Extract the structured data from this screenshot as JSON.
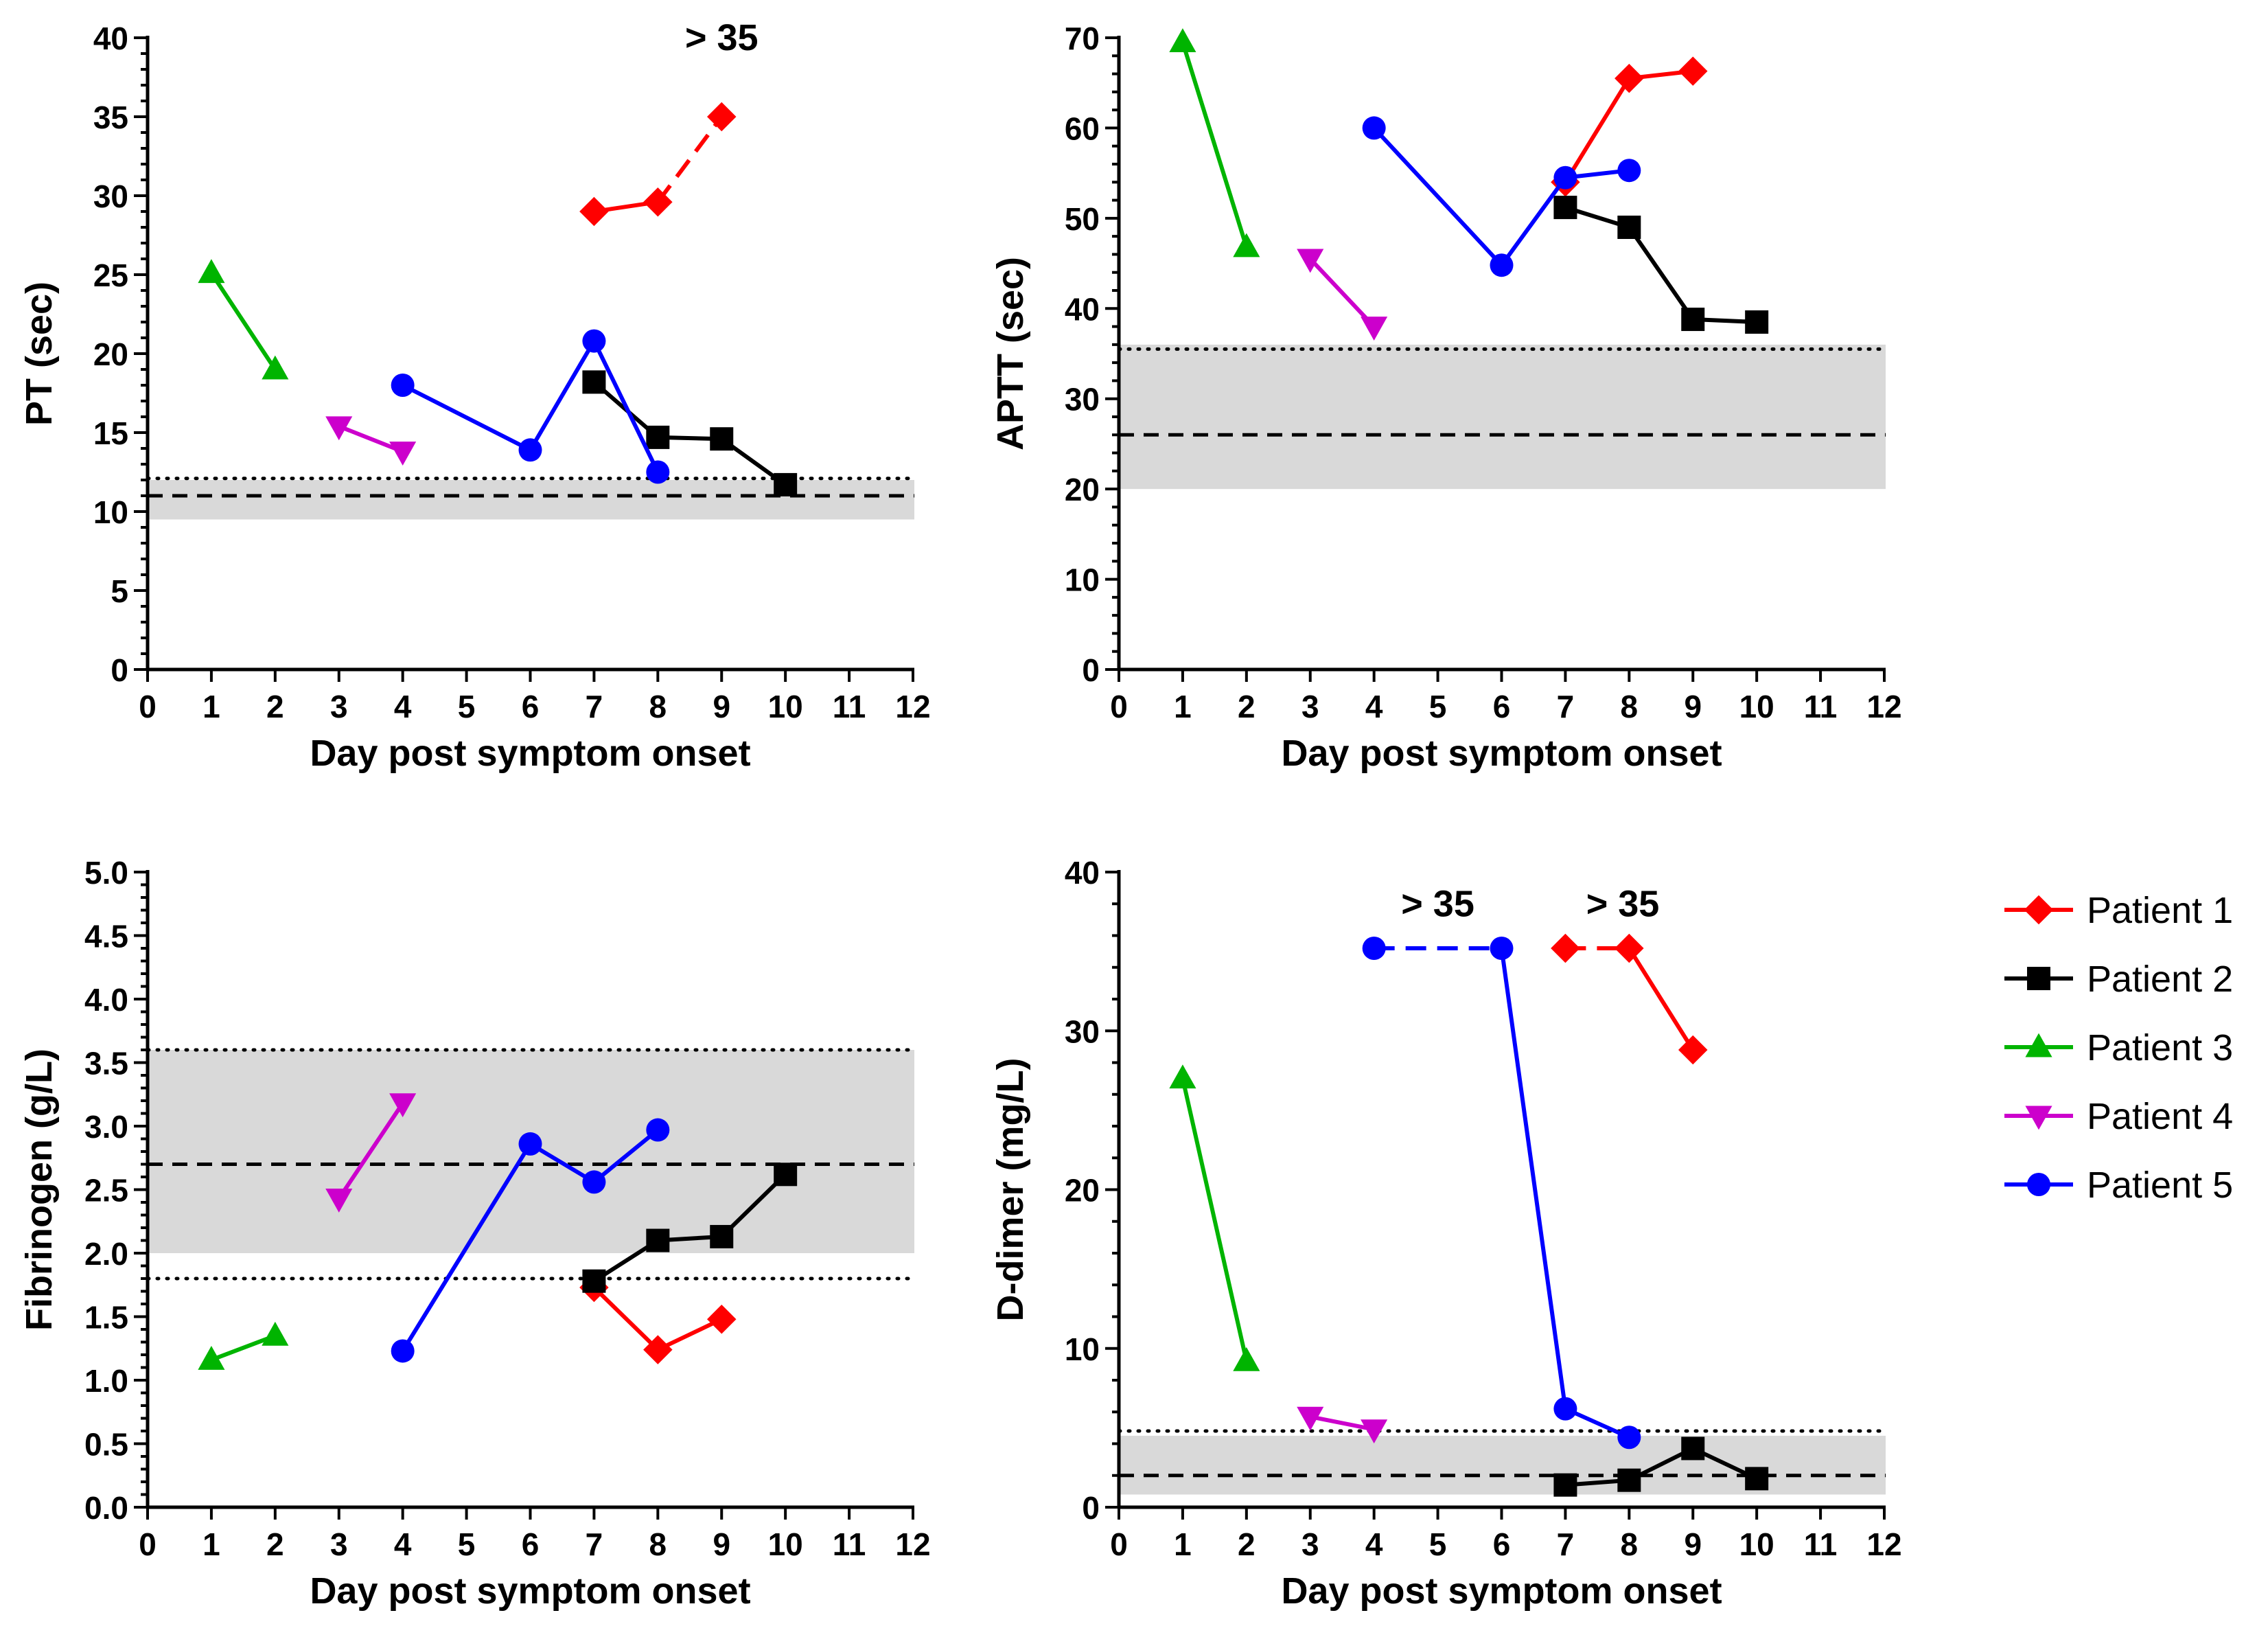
{
  "legend": {
    "items": [
      {
        "label": "Patient 1",
        "color": "#ff0000",
        "marker": "diamond"
      },
      {
        "label": "Patient 2",
        "color": "#000000",
        "marker": "square"
      },
      {
        "label": "Patient 3",
        "color": "#00b400",
        "marker": "triangle-up"
      },
      {
        "label": "Patient 4",
        "color": "#cc00cc",
        "marker": "triangle-down"
      },
      {
        "label": "Patient 5",
        "color": "#0000ff",
        "marker": "circle"
      }
    ]
  },
  "chart_data": [
    {
      "id": "pt",
      "type": "line",
      "ylabel": "PT (sec)",
      "xlabel": "Day post symptom onset",
      "xlim": [
        0,
        12
      ],
      "ylim": [
        0,
        40
      ],
      "xticks": [
        0,
        1,
        2,
        3,
        4,
        5,
        6,
        7,
        8,
        9,
        10,
        11,
        12
      ],
      "yticks": [
        0,
        5,
        10,
        15,
        20,
        25,
        30,
        35,
        40
      ],
      "ytick_labels": [
        "0",
        "5",
        "10",
        "15",
        "20",
        "25",
        "30",
        "35",
        "40"
      ],
      "ref_band": [
        9.5,
        12
      ],
      "ref_mean": 11,
      "ref_dotted": [
        12.1
      ],
      "annotations": [
        {
          "text": "> 35",
          "x": 9,
          "y": 40
        }
      ],
      "series": [
        {
          "name": "Patient 1",
          "points": [
            [
              7,
              29
            ],
            [
              8,
              29.6
            ],
            [
              9,
              35
            ]
          ],
          "dashed_segments": [
            1
          ]
        },
        {
          "name": "Patient 2",
          "points": [
            [
              7,
              18.2
            ],
            [
              8,
              14.7
            ],
            [
              9,
              14.6
            ],
            [
              10,
              11.7
            ]
          ]
        },
        {
          "name": "Patient 3",
          "points": [
            [
              1,
              25.1
            ],
            [
              2,
              19
            ]
          ]
        },
        {
          "name": "Patient 4",
          "points": [
            [
              3,
              15.4
            ],
            [
              4,
              13.8
            ]
          ]
        },
        {
          "name": "Patient 5",
          "points": [
            [
              4,
              18
            ],
            [
              6,
              13.9
            ],
            [
              7,
              20.8
            ],
            [
              8,
              12.5
            ]
          ]
        }
      ]
    },
    {
      "id": "aptt",
      "type": "line",
      "ylabel": "APTT (sec)",
      "xlabel": "Day post symptom onset",
      "xlim": [
        0,
        12
      ],
      "ylim": [
        0,
        70
      ],
      "xticks": [
        0,
        1,
        2,
        3,
        4,
        5,
        6,
        7,
        8,
        9,
        10,
        11,
        12
      ],
      "yticks": [
        0,
        10,
        20,
        30,
        40,
        50,
        60,
        70
      ],
      "ytick_labels": [
        "0",
        "10",
        "20",
        "30",
        "40",
        "50",
        "60",
        "70"
      ],
      "ref_band": [
        20,
        36
      ],
      "ref_mean": 26,
      "ref_dotted": [
        35.5
      ],
      "annotations": [],
      "series": [
        {
          "name": "Patient 1",
          "points": [
            [
              7,
              54
            ],
            [
              8,
              65.5
            ],
            [
              9,
              66.3
            ]
          ]
        },
        {
          "name": "Patient 2",
          "points": [
            [
              7,
              51.2
            ],
            [
              8,
              49
            ],
            [
              9,
              38.8
            ],
            [
              10,
              38.5
            ]
          ]
        },
        {
          "name": "Patient 3",
          "points": [
            [
              1,
              69.5
            ],
            [
              2,
              46.8
            ]
          ]
        },
        {
          "name": "Patient 4",
          "points": [
            [
              3,
              45.5
            ],
            [
              4,
              38
            ]
          ]
        },
        {
          "name": "Patient 5",
          "points": [
            [
              4,
              60
            ],
            [
              6,
              44.8
            ],
            [
              7,
              54.5
            ],
            [
              8,
              55.3
            ]
          ]
        }
      ]
    },
    {
      "id": "fibrinogen",
      "type": "line",
      "ylabel": "Fibrinogen (g/L)",
      "xlabel": "Day post symptom onset",
      "xlim": [
        0,
        12
      ],
      "ylim": [
        0,
        5
      ],
      "xticks": [
        0,
        1,
        2,
        3,
        4,
        5,
        6,
        7,
        8,
        9,
        10,
        11,
        12
      ],
      "yticks": [
        0,
        0.5,
        1,
        1.5,
        2,
        2.5,
        3,
        3.5,
        4,
        4.5,
        5
      ],
      "ytick_labels": [
        "0.0",
        "0.5",
        "1.0",
        "1.5",
        "2.0",
        "2.5",
        "3.0",
        "3.5",
        "4.0",
        "4.5",
        "5.0"
      ],
      "ref_band": [
        2.0,
        3.6
      ],
      "ref_mean": 2.7,
      "ref_dotted": [
        1.8,
        3.6
      ],
      "annotations": [],
      "series": [
        {
          "name": "Patient 1",
          "points": [
            [
              7,
              1.73
            ],
            [
              8,
              1.24
            ],
            [
              9,
              1.48
            ]
          ]
        },
        {
          "name": "Patient 2",
          "points": [
            [
              7,
              1.78
            ],
            [
              8,
              2.1
            ],
            [
              9,
              2.13
            ],
            [
              10,
              2.62
            ]
          ]
        },
        {
          "name": "Patient 3",
          "points": [
            [
              1,
              1.16
            ],
            [
              2,
              1.35
            ]
          ]
        },
        {
          "name": "Patient 4",
          "points": [
            [
              3,
              2.43
            ],
            [
              4,
              3.18
            ]
          ]
        },
        {
          "name": "Patient 5",
          "points": [
            [
              4,
              1.23
            ],
            [
              6,
              2.86
            ],
            [
              7,
              2.56
            ],
            [
              8,
              2.97
            ]
          ]
        }
      ]
    },
    {
      "id": "ddimer",
      "type": "line",
      "ylabel": "D-dimer (mg/L)",
      "xlabel": "Day post symptom onset",
      "xlim": [
        0,
        12
      ],
      "ylim": [
        0,
        40
      ],
      "xticks": [
        0,
        1,
        2,
        3,
        4,
        5,
        6,
        7,
        8,
        9,
        10,
        11,
        12
      ],
      "yticks": [
        0,
        10,
        20,
        30,
        40
      ],
      "ytick_labels": [
        "0",
        "10",
        "20",
        "30",
        "40"
      ],
      "ref_band": [
        0.8,
        4.5
      ],
      "ref_mean": 2,
      "ref_dotted": [
        4.8
      ],
      "annotations": [
        {
          "text": "> 35",
          "x": 5,
          "y": 38
        },
        {
          "text": "> 35",
          "x": 7.9,
          "y": 38
        }
      ],
      "series": [
        {
          "name": "Patient 1",
          "points": [
            [
              7,
              35.2
            ],
            [
              8,
              35.2
            ],
            [
              9,
              28.8
            ]
          ],
          "dashed_segments": [
            0
          ]
        },
        {
          "name": "Patient 2",
          "points": [
            [
              7,
              1.4
            ],
            [
              8,
              1.7
            ],
            [
              9,
              3.7
            ],
            [
              10,
              1.8
            ]
          ]
        },
        {
          "name": "Patient 3",
          "points": [
            [
              1,
              27
            ],
            [
              2,
              9.2
            ]
          ]
        },
        {
          "name": "Patient 4",
          "points": [
            [
              3,
              5.7
            ],
            [
              4,
              4.9
            ]
          ]
        },
        {
          "name": "Patient 5",
          "points": [
            [
              4,
              35.2
            ],
            [
              6,
              35.2
            ],
            [
              7,
              6.2
            ],
            [
              8,
              4.4
            ]
          ],
          "dashed_segments": [
            0
          ]
        }
      ]
    }
  ]
}
